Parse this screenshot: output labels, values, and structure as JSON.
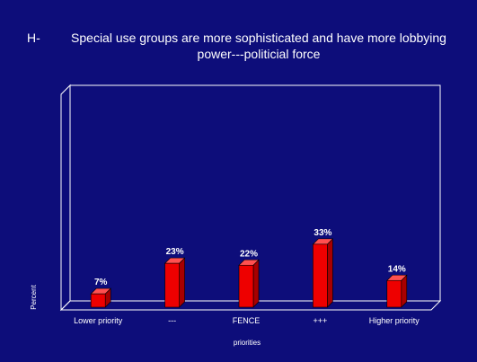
{
  "title_prefix": "H-",
  "title": "Special use groups are more sophisticated and have more lobbying power---politicial force",
  "colors": {
    "background": "#0d0d7a",
    "bar_front": "#ee0000",
    "bar_side": "#a80000",
    "bar_top": "#ff5050",
    "frame": "#ffffff"
  },
  "chart_data": {
    "type": "bar",
    "title": "Special use groups are more sophisticated and have more lobbying power---politicial force",
    "xlabel": "priorities",
    "ylabel": "Percent",
    "categories": [
      "Lower priority",
      "---",
      "FENCE",
      "+++",
      "Higher priority"
    ],
    "values": [
      7,
      23,
      22,
      33,
      14
    ],
    "data_labels": [
      "7%",
      "23%",
      "22%",
      "33%",
      "14%"
    ],
    "ylim": [
      0,
      100
    ],
    "grid": false,
    "legend": "none"
  }
}
